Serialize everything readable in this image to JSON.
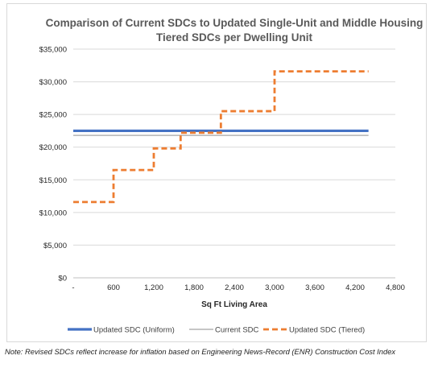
{
  "chart_data": {
    "type": "line",
    "title_lines": [
      "Comparison of Current SDCs to Updated Single-Unit and Middle Housing",
      "Tiered SDCs per Dwelling Unit"
    ],
    "xlabel": "Sq Ft Living Area",
    "ylabel": "",
    "xlim": [
      0,
      4800
    ],
    "ylim": [
      0,
      35000
    ],
    "x_ticks": [
      0,
      600,
      1200,
      1800,
      2400,
      3000,
      3600,
      4200,
      4800
    ],
    "x_tick_labels": [
      "-",
      "600",
      "1,200",
      "1,800",
      "2,400",
      "3,000",
      "3,600",
      "4,200",
      "4,800"
    ],
    "y_ticks": [
      0,
      5000,
      10000,
      15000,
      20000,
      25000,
      30000,
      35000
    ],
    "y_tick_labels": [
      "$0",
      "$5,000",
      "$10,000",
      "$15,000",
      "$20,000",
      "$25,000",
      "$30,000",
      "$35,000"
    ],
    "grid": {
      "horizontal": true,
      "vertical": false
    },
    "legend_position": "bottom",
    "series": [
      {
        "name": "Updated SDC (Uniform)",
        "style": "solid-thick",
        "color": "#4472c4",
        "x": [
          0,
          4400
        ],
        "y": [
          22500,
          22500
        ]
      },
      {
        "name": "Current SDC",
        "style": "solid-thin",
        "color": "#a5a5a5",
        "x": [
          0,
          4400
        ],
        "y": [
          21800,
          21800
        ]
      },
      {
        "name": "Updated SDC (Tiered)",
        "style": "dashed",
        "color": "#ed7d31",
        "x": [
          0,
          600,
          600,
          1200,
          1200,
          1600,
          1600,
          2200,
          2200,
          3000,
          3000,
          4400
        ],
        "y": [
          11600,
          11600,
          16500,
          16500,
          19800,
          19800,
          22200,
          22200,
          25500,
          25500,
          31600,
          31600
        ]
      }
    ]
  },
  "footnote": "Note: Revised SDCs reflect increase for inflation based on Engineering News-Record (ENR) Construction Cost Index"
}
